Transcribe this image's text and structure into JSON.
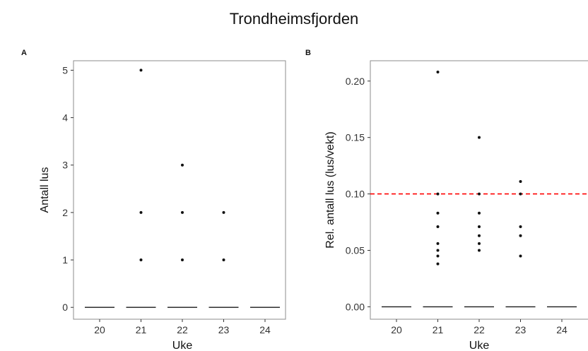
{
  "title": "Trondheimsfjorden",
  "colors": {
    "refline": "#ff0000",
    "points": "#111111",
    "frame": "#8c8c8c",
    "median": "#1a1a1a"
  },
  "chart_data": [
    {
      "panel": "A",
      "type": "scatter",
      "title": "",
      "xlabel": "Uke",
      "ylabel": "Antall lus",
      "categories": [
        "20",
        "21",
        "22",
        "23",
        "24"
      ],
      "yticks": [
        "0",
        "1",
        "2",
        "3",
        "4",
        "5"
      ],
      "ylim": [
        -0.25,
        5.2
      ],
      "grid": false,
      "legend": "none",
      "medians": [
        0,
        0,
        0,
        0,
        0
      ],
      "points": [
        {
          "x": "21",
          "y": 5
        },
        {
          "x": "21",
          "y": 2
        },
        {
          "x": "21",
          "y": 1
        },
        {
          "x": "22",
          "y": 3
        },
        {
          "x": "22",
          "y": 2
        },
        {
          "x": "22",
          "y": 1
        },
        {
          "x": "23",
          "y": 2
        },
        {
          "x": "23",
          "y": 1
        }
      ]
    },
    {
      "panel": "B",
      "type": "scatter",
      "title": "",
      "xlabel": "Uke",
      "ylabel": "Rel. antall lus (lus/vekt)",
      "categories": [
        "20",
        "21",
        "22",
        "23",
        "24"
      ],
      "yticks": [
        "0.00",
        "0.05",
        "0.10",
        "0.15",
        "0.20"
      ],
      "ylim": [
        -0.011,
        0.218
      ],
      "grid": false,
      "legend": "none",
      "reference_line": {
        "y": 0.1,
        "style": "dashed",
        "color": "#ff0000"
      },
      "medians": [
        0,
        0,
        0,
        0,
        0
      ],
      "points": [
        {
          "x": "21",
          "y": 0.208
        },
        {
          "x": "21",
          "y": 0.1
        },
        {
          "x": "21",
          "y": 0.083
        },
        {
          "x": "21",
          "y": 0.071
        },
        {
          "x": "21",
          "y": 0.056
        },
        {
          "x": "21",
          "y": 0.05
        },
        {
          "x": "21",
          "y": 0.045
        },
        {
          "x": "21",
          "y": 0.038
        },
        {
          "x": "22",
          "y": 0.15
        },
        {
          "x": "22",
          "y": 0.1
        },
        {
          "x": "22",
          "y": 0.083
        },
        {
          "x": "22",
          "y": 0.071
        },
        {
          "x": "22",
          "y": 0.063
        },
        {
          "x": "22",
          "y": 0.056
        },
        {
          "x": "22",
          "y": 0.05
        },
        {
          "x": "23",
          "y": 0.111
        },
        {
          "x": "23",
          "y": 0.1
        },
        {
          "x": "23",
          "y": 0.071
        },
        {
          "x": "23",
          "y": 0.063
        },
        {
          "x": "23",
          "y": 0.045
        }
      ]
    }
  ]
}
